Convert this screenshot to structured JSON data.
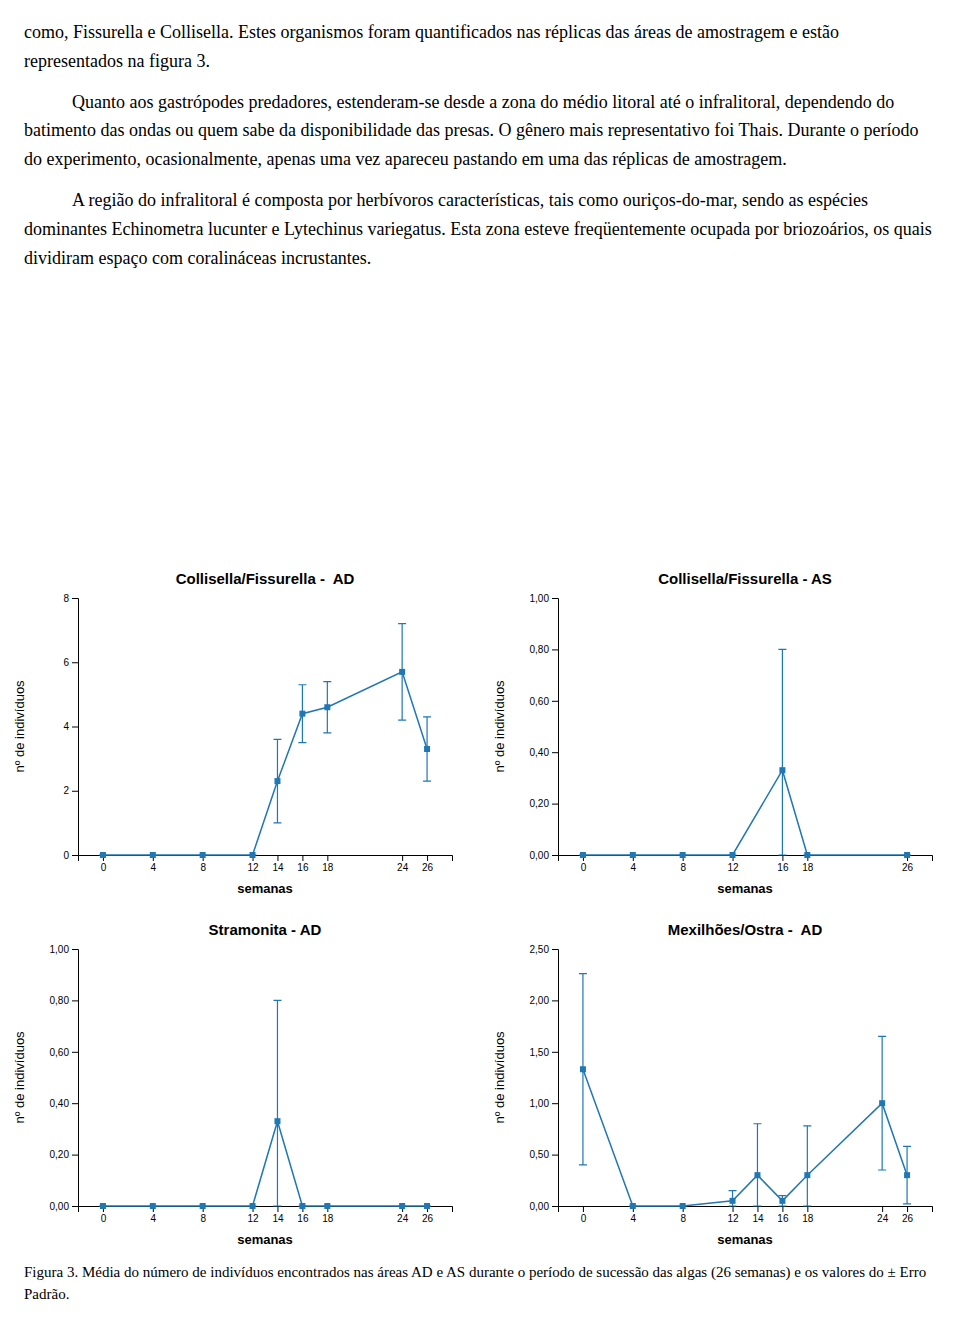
{
  "body_text": [
    "como, Fissurella e Collisella. Estes organismos foram quantificados nas réplicas das áreas de amostragem e estão representados na figura 3.",
    "Quanto aos gastrópodes predadores, estenderam-se desde a zona do médio litoral até o infralitoral, dependendo do batimento das ondas ou quem sabe da disponibilidade das presas. O gênero mais representativo foi Thais. Durante o período do experimento, ocasionalmente, apenas uma vez apareceu pastando em uma das réplicas de amostragem.",
    "A região do infralitoral é composta por herbívoros características, tais como ouriços-do-mar, sendo as espécies dominantes Echinometra lucunter e Lytechinus variegatus. Esta zona esteve freqüentemente ocupada por briozoários, os quais dividiram espaço com coralináceas incrustantes."
  ],
  "caption": "Figura 3. Média do número de indivíduos encontrados nas áreas AD e AS durante o período de sucessão das algas (26 semanas) e os valores do ± Erro Padrão.",
  "chart_data": [
    {
      "type": "line",
      "title": "Collisella/Fissurella -  AD",
      "xlabel": "semanas",
      "ylabel": "nº de indivíduos",
      "marker": "square",
      "line_style": "solid",
      "grid": false,
      "x": [
        0,
        4,
        8,
        12,
        14,
        16,
        18,
        24,
        26
      ],
      "values": [
        0,
        0,
        0,
        0,
        2.3,
        4.4,
        4.6,
        5.7,
        3.3
      ],
      "errors_minus": [
        0.0,
        0.0,
        0.0,
        0.0,
        1.3,
        0.9,
        0.8,
        1.5,
        1.0
      ],
      "errors_plus": [
        0.0,
        0.0,
        0.0,
        0.0,
        1.3,
        0.9,
        0.8,
        1.5,
        1.0
      ],
      "xlim": [
        -2,
        28
      ],
      "xticks": [
        0,
        4,
        8,
        12,
        14,
        16,
        18,
        24,
        26
      ],
      "ylim": [
        0,
        8
      ],
      "yticks": [
        0,
        2,
        4,
        6,
        8
      ]
    },
    {
      "type": "line",
      "title": "Collisella/Fissurella - AS",
      "xlabel": "semanas",
      "ylabel": "nº de indivíduos",
      "marker": "square",
      "line_style": "solid",
      "grid": false,
      "x": [
        0,
        4,
        8,
        12,
        16,
        18,
        26
      ],
      "values": [
        0,
        0,
        0,
        0,
        0.33,
        0,
        0
      ],
      "errors_minus": [
        0.0,
        0.0,
        0.0,
        0.0,
        0.33,
        0.0,
        0.0
      ],
      "errors_plus": [
        0.0,
        0.0,
        0.0,
        0.0,
        0.47,
        0.0,
        0.0
      ],
      "xlim": [
        -2,
        28
      ],
      "xticks": [
        0,
        4,
        8,
        12,
        16,
        18,
        26
      ],
      "ylim": [
        0,
        1.0
      ],
      "yticks": [
        {
          "value": 0.0,
          "label": "0,00"
        },
        {
          "value": 0.2,
          "label": "0,20"
        },
        {
          "value": 0.4,
          "label": "0,40"
        },
        {
          "value": 0.6,
          "label": "0,60"
        },
        {
          "value": 0.8,
          "label": "0,80"
        },
        {
          "value": 1.0,
          "label": "1,00"
        }
      ]
    },
    {
      "type": "line",
      "title": "Stramonita - AD",
      "xlabel": "semanas",
      "ylabel": "nº de indivíduos",
      "marker": "square",
      "line_style": "solid",
      "grid": false,
      "x": [
        0,
        4,
        8,
        12,
        14,
        16,
        18,
        24,
        26
      ],
      "values": [
        0,
        0,
        0,
        0,
        0.33,
        0,
        0,
        0,
        0
      ],
      "errors_minus": [
        0.0,
        0.0,
        0.0,
        0.0,
        0.33,
        0.0,
        0.0,
        0.0,
        0.0
      ],
      "errors_plus": [
        0.0,
        0.0,
        0.0,
        0.0,
        0.47,
        0.0,
        0.0,
        0.0,
        0.0
      ],
      "xlim": [
        -2,
        28
      ],
      "xticks": [
        0,
        4,
        8,
        12,
        14,
        16,
        18,
        24,
        26
      ],
      "ylim": [
        0,
        1.0
      ],
      "yticks": [
        {
          "value": 0.0,
          "label": "0,00"
        },
        {
          "value": 0.2,
          "label": "0,20"
        },
        {
          "value": 0.4,
          "label": "0,40"
        },
        {
          "value": 0.6,
          "label": "0,60"
        },
        {
          "value": 0.8,
          "label": "0,80"
        },
        {
          "value": 1.0,
          "label": "1,00"
        }
      ]
    },
    {
      "type": "line",
      "title": "Mexilhões/Ostra -  AD",
      "xlabel": "semanas",
      "ylabel": "nº de indivíduos",
      "marker": "square",
      "line_style": "solid",
      "grid": false,
      "x": [
        0,
        4,
        8,
        12,
        14,
        16,
        18,
        24,
        26
      ],
      "values": [
        1.33,
        0.0,
        0.0,
        0.05,
        0.3,
        0.05,
        0.3,
        1.0,
        0.3
      ],
      "errors_minus": [
        0.93,
        0.0,
        0.0,
        0.05,
        0.3,
        0.05,
        0.3,
        0.65,
        0.28
      ],
      "errors_plus": [
        0.93,
        0.0,
        0.0,
        0.1,
        0.5,
        0.05,
        0.48,
        0.65,
        0.28
      ],
      "xlim": [
        -2,
        28
      ],
      "xticks": [
        0,
        4,
        8,
        12,
        14,
        16,
        18,
        24,
        26
      ],
      "ylim": [
        0,
        2.5
      ],
      "yticks": [
        {
          "value": 0.0,
          "label": "0,00"
        },
        {
          "value": 0.5,
          "label": "0,50"
        },
        {
          "value": 1.0,
          "label": "1,00"
        },
        {
          "value": 1.5,
          "label": "1,50"
        },
        {
          "value": 2.0,
          "label": "2,00"
        },
        {
          "value": 2.5,
          "label": "2,50"
        }
      ]
    }
  ]
}
